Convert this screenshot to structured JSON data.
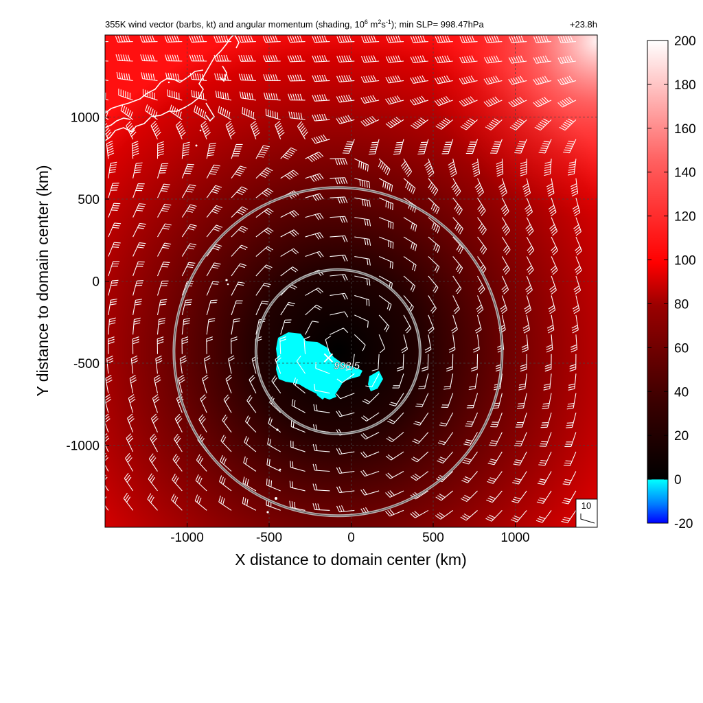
{
  "chart_data": {
    "type": "heatmap",
    "title": {
      "main": "355K wind vector (barbs, kt) and angular momentum (shading, 10",
      "sup1": "6",
      "mid1": " m",
      "sup2": "2",
      "mid2": "s",
      "sup3": "-1",
      "tail": "); min SLP= 998.47hPa",
      "time": "+23.8h"
    },
    "xlabel": "X distance to domain center (km)",
    "ylabel": "Y distance to domain center (km)",
    "xlim": [
      -1500,
      1500
    ],
    "ylim": [
      -1500,
      1500
    ],
    "xticks": [
      -1000,
      -500,
      0,
      500,
      1000
    ],
    "yticks": [
      -1000,
      -500,
      0,
      500,
      1000
    ],
    "xtick_labels": [
      "-1000",
      "-500",
      "0",
      "500",
      "1000"
    ],
    "ytick_labels": [
      "-1000",
      "-500",
      "0",
      "500",
      "1000"
    ],
    "grid": true,
    "colorbar": {
      "range": [
        -20,
        200
      ],
      "ticks": [
        -20,
        0,
        20,
        40,
        60,
        80,
        100,
        120,
        140,
        160,
        180,
        200
      ],
      "tick_labels": [
        "-20",
        "0",
        "20",
        "40",
        "60",
        "80",
        "100",
        "120",
        "140",
        "160",
        "180",
        "200"
      ]
    },
    "storm_center": {
      "x": -80,
      "y": -430
    },
    "min_slp_label": "998.5",
    "range_rings_km": [
      500,
      1000
    ],
    "barb_reference": {
      "label": "10"
    },
    "colors": {
      "negative": "#0000ff",
      "near_zero": "#00ffff",
      "low": "#000000",
      "mid": "#ff0000",
      "high": "#ffffff",
      "barb": "#ffffff",
      "coast": "#ffffff",
      "ring": "#c8c8c8"
    }
  }
}
